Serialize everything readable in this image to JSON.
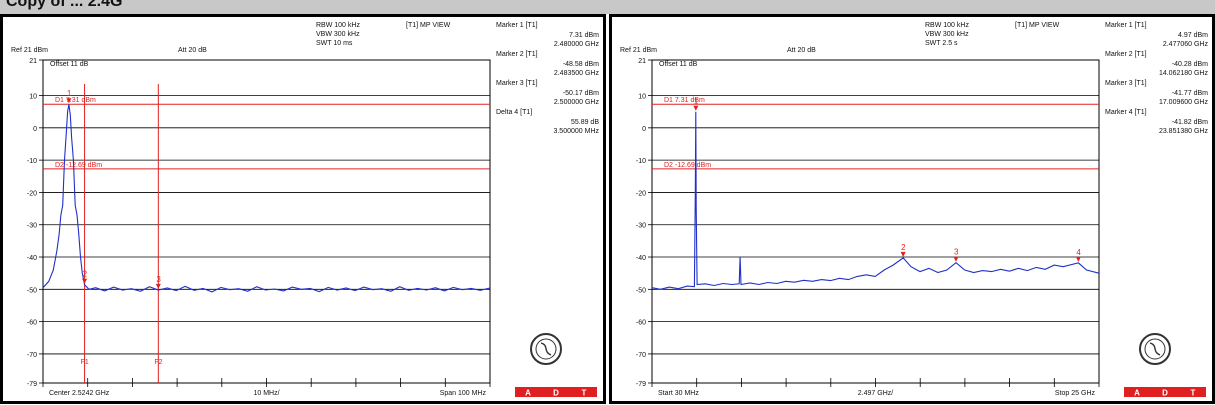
{
  "page": {
    "title_fragment": "Copy of ... 2.4G"
  },
  "charts": [
    {
      "header": {
        "ref": "Ref 21 dBm",
        "att": "Att  20 dB",
        "rbw": "RBW 100 kHz",
        "vbw": "VBW 300 kHz",
        "swt": "SWT 10 ms",
        "mode": "[T1] MP VIEW",
        "offset": "Offset 11 dB"
      },
      "footer": {
        "left": "Center 2.5242 GHz",
        "mid": "10 MHz/",
        "right": "Span 100 MHz"
      },
      "readout": [
        {
          "title": "Marker 1 [T1]",
          "lines": [
            "7.31 dBm",
            "2.480000 GHz"
          ]
        },
        {
          "title": "Marker 2 [T1]",
          "lines": [
            "-48.58 dBm",
            "2.483500 GHz"
          ]
        },
        {
          "title": "Marker 3 [T1]",
          "lines": [
            "-50.17 dBm",
            "2.500000 GHz"
          ]
        },
        {
          "title": "Delta 4 [T1]",
          "lines": [
            "55.89 dB",
            "3.500000 MHz"
          ]
        }
      ],
      "display_lines": [
        {
          "label": "D1  7.31 dBm",
          "level_dbm": 7.31
        },
        {
          "label": "D2 -12.69 dBm",
          "level_dbm": -12.69
        }
      ],
      "freq_lines": [
        {
          "label": "F1",
          "freq_mhz": 2483.5
        },
        {
          "label": "F2",
          "freq_mhz": 2500
        }
      ],
      "chart_data": {
        "type": "line",
        "x_unit": "MHz",
        "xlim": [
          2474.2,
          2574.2
        ],
        "ylim": [
          -79,
          21
        ],
        "y_ticks": [
          "21",
          "10",
          "0",
          "-10",
          "-20",
          "-30",
          "-40",
          "-50",
          "-60",
          "-70",
          "-79"
        ],
        "x_divisions": 10,
        "grid": true,
        "series": [
          {
            "x": [
              2474.2,
              2475.5,
              2476.5,
              2477.3,
              2477.8,
              2478.2,
              2478.6,
              2479.0,
              2479.4,
              2479.7,
              2480.0,
              2480.3,
              2480.6,
              2481.0,
              2481.4,
              2481.8,
              2482.2,
              2482.6,
              2483.0,
              2483.5,
              2484.5,
              2486,
              2488,
              2490,
              2492,
              2494,
              2496,
              2498,
              2500,
              2502,
              2504,
              2506,
              2508,
              2510,
              2512,
              2514,
              2516,
              2518,
              2520,
              2522,
              2524,
              2526,
              2528,
              2530,
              2532,
              2534,
              2536,
              2538,
              2540,
              2542,
              2544,
              2546,
              2548,
              2550,
              2552,
              2554,
              2556,
              2558,
              2560,
              2562,
              2564,
              2566,
              2568,
              2570,
              2572,
              2574.2
            ],
            "y": [
              -49.5,
              -47.5,
              -44,
              -38,
              -33,
              -27,
              -24,
              -10,
              -2,
              5,
              7.3,
              4,
              -3,
              -10,
              -24,
              -27,
              -33,
              -40,
              -45,
              -48.6,
              -50,
              -49.5,
              -50.5,
              -49.3,
              -50.2,
              -49.8,
              -50.6,
              -49.2,
              -50.2,
              -49.6,
              -50.4,
              -49.1,
              -50.3,
              -49.7,
              -50.8,
              -49.4,
              -50.1,
              -49.8,
              -50.6,
              -49.2,
              -50.2,
              -49.9,
              -50.5,
              -49.3,
              -50,
              -49.7,
              -50.7,
              -49.4,
              -50.2,
              -49.6,
              -50.4,
              -49.3,
              -50.1,
              -49.8,
              -50.6,
              -49.2,
              -50.3,
              -49.7,
              -50.2,
              -49.5,
              -50.5,
              -49.4,
              -50.1,
              -49.7,
              -50.3,
              -49.6
            ]
          }
        ],
        "markers": [
          {
            "label": "1",
            "x": 2480,
            "y": 7.31
          },
          {
            "label": "2",
            "x": 2483.5,
            "y": -48.58
          },
          {
            "label": "3",
            "x": 2500,
            "y": -50.17
          }
        ]
      },
      "cert_letters": [
        "A",
        "D",
        "T"
      ]
    },
    {
      "header": {
        "ref": "Ref 21 dBm",
        "att": "Att  20 dB",
        "rbw": "RBW 100 kHz",
        "vbw": "VBW 300 kHz",
        "swt": "SWT 2.5 s",
        "mode": "[T1] MP VIEW",
        "offset": "Offset 11 dB"
      },
      "footer": {
        "left": "Start 30 MHz",
        "mid": "2.497 GHz/",
        "right": "Stop 25 GHz"
      },
      "readout": [
        {
          "title": "Marker 1 [T1]",
          "lines": [
            "4.97 dBm",
            "2.477060 GHz"
          ]
        },
        {
          "title": "Marker 2 [T1]",
          "lines": [
            "-40.28 dBm",
            "14.062180 GHz"
          ]
        },
        {
          "title": "Marker 3 [T1]",
          "lines": [
            "-41.77 dBm",
            "17.009600 GHz"
          ]
        },
        {
          "title": "Marker 4 [T1]",
          "lines": [
            "-41.82 dBm",
            "23.851380 GHz"
          ]
        }
      ],
      "display_lines": [
        {
          "label": "D1  7.31 dBm",
          "level_dbm": 7.31
        },
        {
          "label": "D2 -12.69 dBm",
          "level_dbm": -12.69
        }
      ],
      "freq_lines": [],
      "chart_data": {
        "type": "line",
        "x_unit": "GHz",
        "xlim": [
          0.03,
          25
        ],
        "ylim": [
          -79,
          21
        ],
        "y_ticks": [
          "21",
          "10",
          "0",
          "-10",
          "-20",
          "-30",
          "-40",
          "-50",
          "-60",
          "-70",
          "-79"
        ],
        "x_divisions": 10,
        "grid": true,
        "series": [
          {
            "x": [
              0.03,
              0.5,
              1.0,
              1.5,
              2.0,
              2.4,
              2.45,
              2.477,
              2.5,
              2.55,
              3.0,
              3.5,
              4.0,
              4.5,
              4.9,
              4.95,
              5.0,
              5.5,
              6.0,
              6.5,
              7.0,
              7.5,
              8.0,
              8.5,
              9.0,
              9.5,
              10.0,
              10.5,
              11.0,
              11.5,
              12.0,
              12.5,
              13.0,
              13.5,
              14.06,
              14.5,
              15.0,
              15.5,
              16.0,
              16.5,
              17.01,
              17.5,
              18.0,
              18.5,
              19.0,
              19.5,
              20.0,
              20.5,
              21.0,
              21.5,
              22.0,
              22.5,
              23.0,
              23.85,
              24.3,
              25.0
            ],
            "y": [
              -49.5,
              -50,
              -49.3,
              -49.8,
              -49,
              -49.2,
              -20,
              4.97,
              -25,
              -48.5,
              -48.3,
              -48.8,
              -48.2,
              -48.5,
              -48.3,
              -40,
              -48.5,
              -48,
              -48.5,
              -47.9,
              -48.2,
              -47.5,
              -47.8,
              -47.2,
              -47.5,
              -47,
              -47.3,
              -46.6,
              -47,
              -46,
              -45.5,
              -46,
              -44,
              -42.5,
              -40.28,
              -43,
              -44.5,
              -43.5,
              -44.8,
              -44,
              -41.77,
              -44,
              -44.8,
              -44.2,
              -44.5,
              -43.8,
              -44.4,
              -43.5,
              -44.2,
              -43.2,
              -43.8,
              -42.5,
              -43,
              -41.82,
              -44,
              -45
            ]
          }
        ],
        "markers": [
          {
            "label": "1",
            "x": 2.477,
            "y": 4.97
          },
          {
            "label": "2",
            "x": 14.06,
            "y": -40.28
          },
          {
            "label": "3",
            "x": 17.01,
            "y": -41.77
          },
          {
            "label": "4",
            "x": 23.85,
            "y": -41.82
          }
        ]
      },
      "cert_letters": [
        "A",
        "D",
        "T"
      ]
    }
  ],
  "colors": {
    "trace": "#2030c8",
    "marker": "#e02020",
    "grid": "#000000",
    "cert": "#e02020"
  }
}
